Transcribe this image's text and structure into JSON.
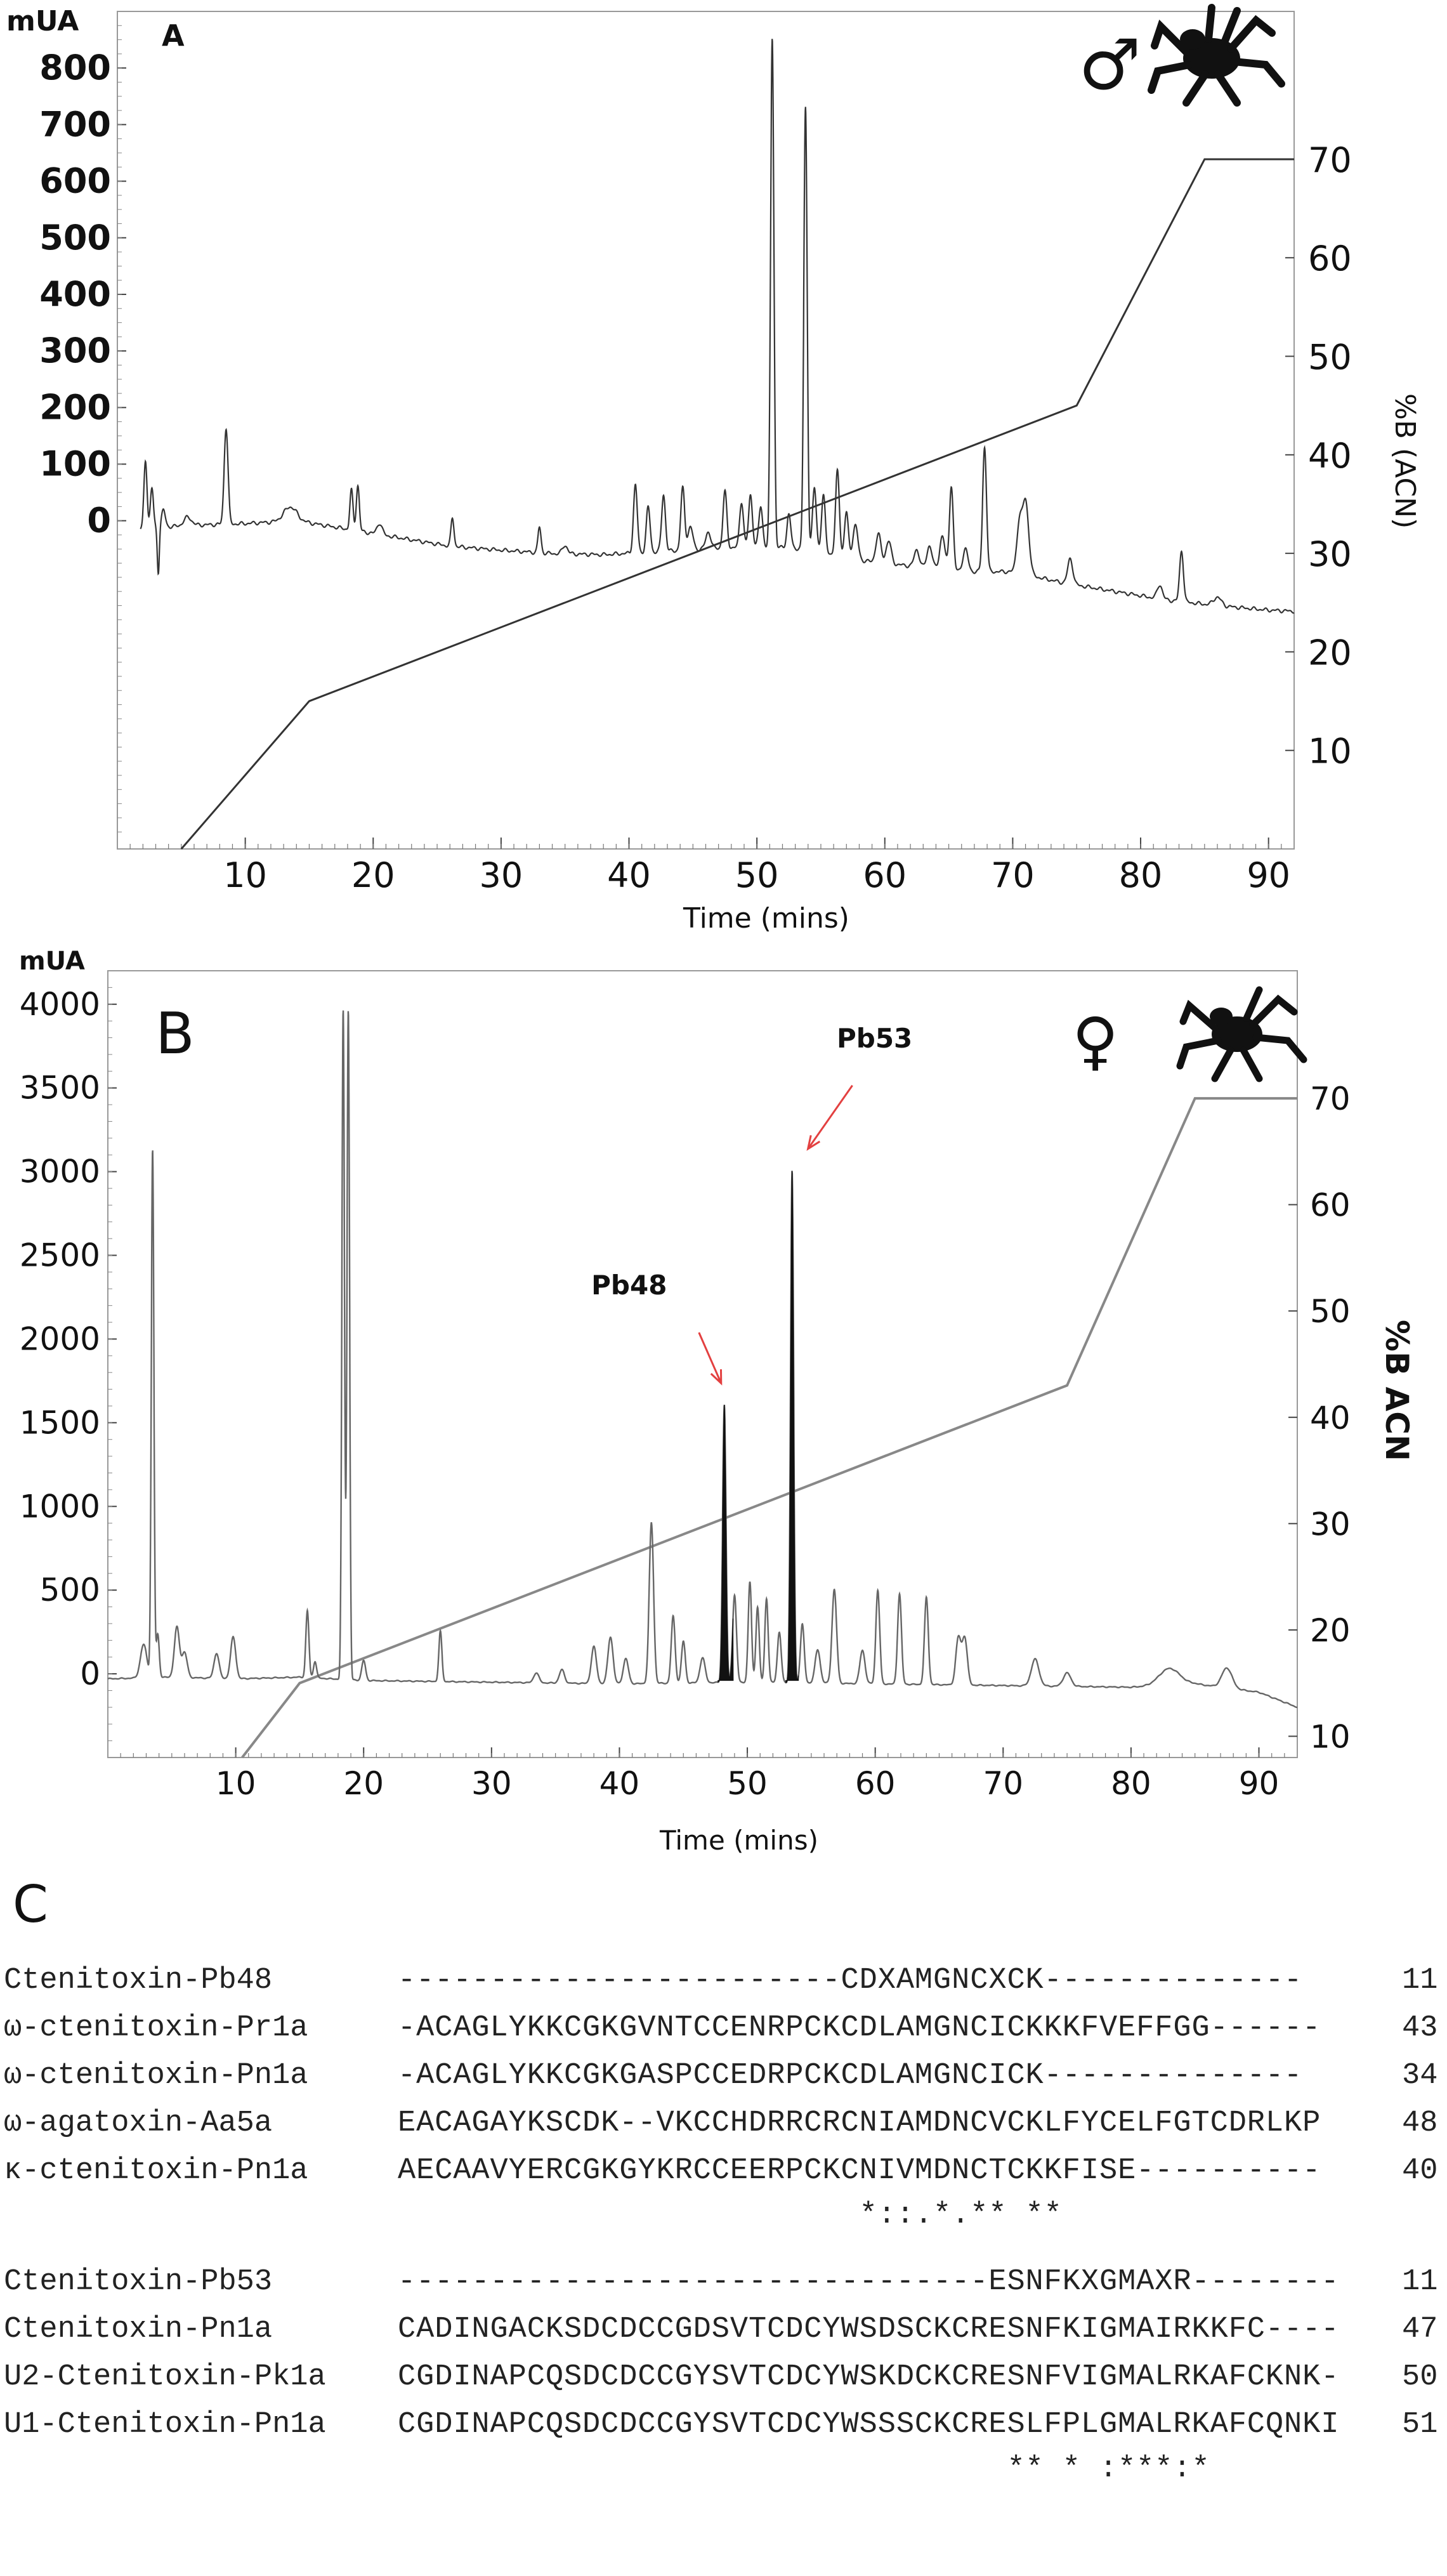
{
  "chart_data": [
    {
      "panel": "A",
      "type": "line",
      "sex_symbol": "♂",
      "left_axis_title": "mUA",
      "right_axis_title": "%B (ACN)",
      "xlabel": "Time (mins)",
      "x_ticks": [
        "10",
        "20",
        "30",
        "40",
        "50",
        "60",
        "70",
        "80",
        "90"
      ],
      "left_ticks": [
        "0",
        "100",
        "200",
        "300",
        "400",
        "500",
        "600",
        "700",
        "800"
      ],
      "right_ticks": [
        "10",
        "20",
        "30",
        "40",
        "50",
        "60",
        "70"
      ],
      "xlim": [
        0,
        92
      ],
      "ylim_left": [
        -580,
        900
      ],
      "ylim_right": [
        0,
        85
      ],
      "gradient": [
        [
          5,
          0
        ],
        [
          15,
          15
        ],
        [
          75,
          45
        ],
        [
          85,
          70
        ],
        [
          92,
          70
        ]
      ],
      "baseline_points": [
        [
          0.5,
          -10
        ],
        [
          1.5,
          -15
        ],
        [
          3,
          -12
        ],
        [
          6,
          -8
        ],
        [
          10,
          -5
        ],
        [
          14,
          0
        ],
        [
          18,
          -15
        ],
        [
          22,
          -30
        ],
        [
          26,
          -45
        ],
        [
          30,
          -52
        ],
        [
          34,
          -58
        ],
        [
          38,
          -60
        ],
        [
          42,
          -55
        ],
        [
          46,
          -50
        ],
        [
          50,
          -45
        ],
        [
          54,
          -50
        ],
        [
          58,
          -70
        ],
        [
          62,
          -80
        ],
        [
          66,
          -90
        ],
        [
          70,
          -90
        ],
        [
          74,
          -110
        ],
        [
          78,
          -125
        ],
        [
          82,
          -140
        ],
        [
          86,
          -150
        ],
        [
          90,
          -158
        ],
        [
          92,
          -160
        ]
      ],
      "peaks": [
        [
          2.2,
          120,
          0.12
        ],
        [
          2.7,
          70,
          0.12
        ],
        [
          3.2,
          -80,
          0.08
        ],
        [
          3.6,
          30,
          0.15
        ],
        [
          5.5,
          15,
          0.3
        ],
        [
          8.5,
          170,
          0.15
        ],
        [
          13.5,
          25,
          0.5
        ],
        [
          18.3,
          70,
          0.12
        ],
        [
          18.8,
          80,
          0.12
        ],
        [
          20.5,
          20,
          0.2
        ],
        [
          26.2,
          50,
          0.12
        ],
        [
          33,
          45,
          0.12
        ],
        [
          35,
          15,
          0.2
        ],
        [
          40.5,
          120,
          0.15
        ],
        [
          41.5,
          80,
          0.15
        ],
        [
          42.7,
          100,
          0.15
        ],
        [
          44.2,
          110,
          0.15
        ],
        [
          44.8,
          40,
          0.2
        ],
        [
          46.2,
          30,
          0.2
        ],
        [
          47.5,
          100,
          0.15
        ],
        [
          48.8,
          80,
          0.15
        ],
        [
          49.5,
          90,
          0.15
        ],
        [
          50.3,
          70,
          0.15
        ],
        [
          51.2,
          900,
          0.13
        ],
        [
          52.5,
          60,
          0.15
        ],
        [
          53.8,
          780,
          0.13
        ],
        [
          54.5,
          110,
          0.15
        ],
        [
          55.2,
          100,
          0.15
        ],
        [
          56.3,
          150,
          0.15
        ],
        [
          57,
          80,
          0.15
        ],
        [
          57.7,
          60,
          0.2
        ],
        [
          59.5,
          50,
          0.2
        ],
        [
          60.3,
          40,
          0.2
        ],
        [
          62.5,
          30,
          0.2
        ],
        [
          63.5,
          40,
          0.2
        ],
        [
          64.5,
          60,
          0.2
        ],
        [
          65.2,
          150,
          0.15
        ],
        [
          66.3,
          40,
          0.2
        ],
        [
          67.8,
          220,
          0.15
        ],
        [
          70.5,
          80,
          0.2
        ],
        [
          71,
          130,
          0.25
        ],
        [
          74.5,
          45,
          0.2
        ],
        [
          81.5,
          25,
          0.2
        ],
        [
          83.2,
          90,
          0.15
        ],
        [
          86,
          15,
          0.3
        ]
      ]
    },
    {
      "panel": "B",
      "type": "line",
      "sex_symbol": "♀",
      "left_axis_title": "mUA",
      "right_axis_title": "%B ACN",
      "xlabel": "Time (mins)",
      "x_ticks": [
        "10",
        "20",
        "30",
        "40",
        "50",
        "60",
        "70",
        "80",
        "90"
      ],
      "left_ticks": [
        "0",
        "500",
        "1000",
        "1500",
        "2000",
        "2500",
        "3000",
        "3500",
        "4000"
      ],
      "right_ticks": [
        "10",
        "20",
        "30",
        "40",
        "50",
        "60",
        "70"
      ],
      "xlim": [
        0,
        93
      ],
      "ylim_left": [
        -500,
        4200
      ],
      "ylim_right": [
        8,
        82
      ],
      "gradient": [
        [
          10.5,
          8
        ],
        [
          15,
          15
        ],
        [
          75,
          43
        ],
        [
          85,
          70
        ],
        [
          93,
          70
        ]
      ],
      "annotations": [
        {
          "label": "Pb48",
          "x": 48.2
        },
        {
          "label": "Pb53",
          "x": 53.5
        }
      ],
      "baseline_points": [
        [
          0,
          -30
        ],
        [
          5,
          -20
        ],
        [
          10,
          -30
        ],
        [
          15,
          -20
        ],
        [
          20,
          -40
        ],
        [
          30,
          -50
        ],
        [
          40,
          -60
        ],
        [
          50,
          -50
        ],
        [
          60,
          -60
        ],
        [
          70,
          -70
        ],
        [
          80,
          -80
        ],
        [
          85,
          -60
        ],
        [
          90,
          -110
        ],
        [
          93,
          -200
        ]
      ],
      "peaks": [
        [
          2.8,
          200,
          0.25
        ],
        [
          3.5,
          3150,
          0.1
        ],
        [
          3.9,
          260,
          0.12
        ],
        [
          5.4,
          300,
          0.2
        ],
        [
          6,
          150,
          0.2
        ],
        [
          8.5,
          150,
          0.2
        ],
        [
          9.8,
          250,
          0.2
        ],
        [
          15.6,
          400,
          0.12
        ],
        [
          16.2,
          100,
          0.12
        ],
        [
          18.4,
          4000,
          0.1
        ],
        [
          18.8,
          4000,
          0.1
        ],
        [
          20,
          120,
          0.15
        ],
        [
          26,
          300,
          0.12
        ],
        [
          33.5,
          60,
          0.2
        ],
        [
          35.5,
          80,
          0.2
        ],
        [
          38,
          220,
          0.2
        ],
        [
          39.3,
          280,
          0.2
        ],
        [
          40.5,
          150,
          0.2
        ],
        [
          42.5,
          960,
          0.17
        ],
        [
          44.2,
          400,
          0.15
        ],
        [
          45,
          250,
          0.15
        ],
        [
          46.5,
          150,
          0.2
        ],
        [
          48.2,
          1660,
          0.13
        ],
        [
          49,
          520,
          0.15
        ],
        [
          50.2,
          600,
          0.13
        ],
        [
          50.8,
          450,
          0.13
        ],
        [
          51.5,
          500,
          0.13
        ],
        [
          52.5,
          300,
          0.15
        ],
        [
          53.5,
          3060,
          0.12
        ],
        [
          54.3,
          350,
          0.15
        ],
        [
          55.5,
          200,
          0.2
        ],
        [
          56.8,
          560,
          0.18
        ],
        [
          59,
          200,
          0.2
        ],
        [
          60.2,
          560,
          0.15
        ],
        [
          61.9,
          540,
          0.15
        ],
        [
          64,
          520,
          0.15
        ],
        [
          66.5,
          280,
          0.2
        ],
        [
          67,
          280,
          0.2
        ],
        [
          72.5,
          160,
          0.3
        ],
        [
          75,
          80,
          0.3
        ],
        [
          83,
          100,
          0.8
        ],
        [
          87.5,
          120,
          0.4
        ]
      ]
    }
  ],
  "alignment": {
    "panel_label": "C",
    "group1": [
      {
        "name": "Ctenitoxin-Pb48",
        "seq": "------------------------CDXAMGNCXCK--------------",
        "num": "11"
      },
      {
        "name": "ω-ctenitoxin-Pr1a",
        "seq": "-ACAGLYKKCGKGVNTCCENRPCKCDLAMGNCICKKKFVEFFGG------",
        "num": "43"
      },
      {
        "name": "ω-ctenitoxin-Pn1a",
        "seq": "-ACAGLYKKCGKGASPCCEDRPCKCDLAMGNCICK--------------",
        "num": "34"
      },
      {
        "name": "ω-agatoxin-Aa5a",
        "seq": "EACAGAYKSCDK--VKCCHDRRCRCNIAMDNCVCKLFYCELFGTCDRLKP",
        "num": "48"
      },
      {
        "name": "κ-ctenitoxin-Pn1a",
        "seq": "AECAAVYERCGKGYKRCCEERPCKCNIVMDNCTCKKFISE----------",
        "num": "40"
      }
    ],
    "consensus1": "                         *::.*.** **",
    "group2": [
      {
        "name": "Ctenitoxin-Pb53",
        "seq": "--------------------------------ESNFKXGMAXR--------",
        "num": "11"
      },
      {
        "name": "Ctenitoxin-Pn1a",
        "seq": "CADINGACKSDCDCCGDSVTCDCYWSDSCKCRESNFKIGMAIRKKFC----",
        "num": "47"
      },
      {
        "name": "U2-Ctenitoxin-Pk1a",
        "seq": "CGDINAPCQSDCDCCGYSVTCDCYWSKDCKCRESNFVIGMALRKAFCKNK-",
        "num": "50"
      },
      {
        "name": "U1-Ctenitoxin-Pn1a",
        "seq": "CGDINAPCQSDCDCCGYSVTCDCYWSSSCKCRESLFPLGMALRKAFCQNKI",
        "num": "51"
      }
    ],
    "consensus2": "                                 ** * :***:*"
  }
}
